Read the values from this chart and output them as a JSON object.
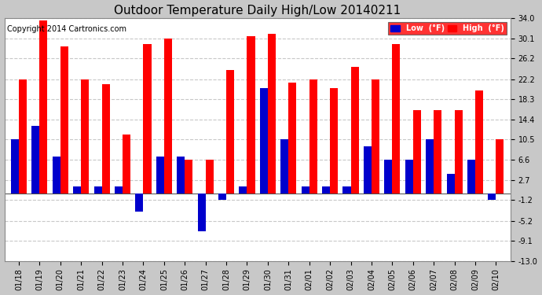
{
  "title": "Outdoor Temperature Daily High/Low 20140211",
  "copyright": "Copyright 2014 Cartronics.com",
  "ylim": [
    -13.0,
    34.0
  ],
  "yticks": [
    -13.0,
    -9.1,
    -5.2,
    -1.2,
    2.7,
    6.6,
    10.5,
    14.4,
    18.3,
    22.2,
    26.2,
    30.1,
    34.0
  ],
  "dates": [
    "01/18",
    "01/19",
    "01/20",
    "01/21",
    "01/22",
    "01/23",
    "01/24",
    "01/25",
    "01/26",
    "01/27",
    "01/28",
    "01/29",
    "01/30",
    "01/31",
    "02/01",
    "02/02",
    "02/03",
    "02/04",
    "02/05",
    "02/06",
    "02/07",
    "02/08",
    "02/09",
    "02/10"
  ],
  "highs": [
    22.2,
    33.5,
    28.5,
    22.2,
    21.2,
    11.5,
    29.0,
    30.1,
    6.6,
    6.6,
    24.0,
    30.5,
    31.0,
    21.5,
    22.2,
    20.5,
    24.5,
    22.2,
    29.0,
    16.2,
    16.2,
    16.2,
    20.0,
    10.5
  ],
  "lows": [
    10.5,
    13.2,
    7.2,
    1.5,
    1.5,
    1.5,
    -3.5,
    7.2,
    7.2,
    -7.2,
    -1.2,
    1.5,
    20.5,
    10.5,
    1.5,
    1.5,
    1.5,
    9.2,
    6.6,
    6.6,
    10.5,
    3.9,
    6.6,
    -1.2
  ],
  "high_color": "#ff0000",
  "low_color": "#0000cc",
  "outer_bg_color": "#c8c8c8",
  "plot_bg_color": "#ffffff",
  "grid_color": "#c8c8c8",
  "title_fontsize": 11,
  "copyright_fontsize": 7,
  "tick_fontsize": 7,
  "bar_width": 0.38
}
